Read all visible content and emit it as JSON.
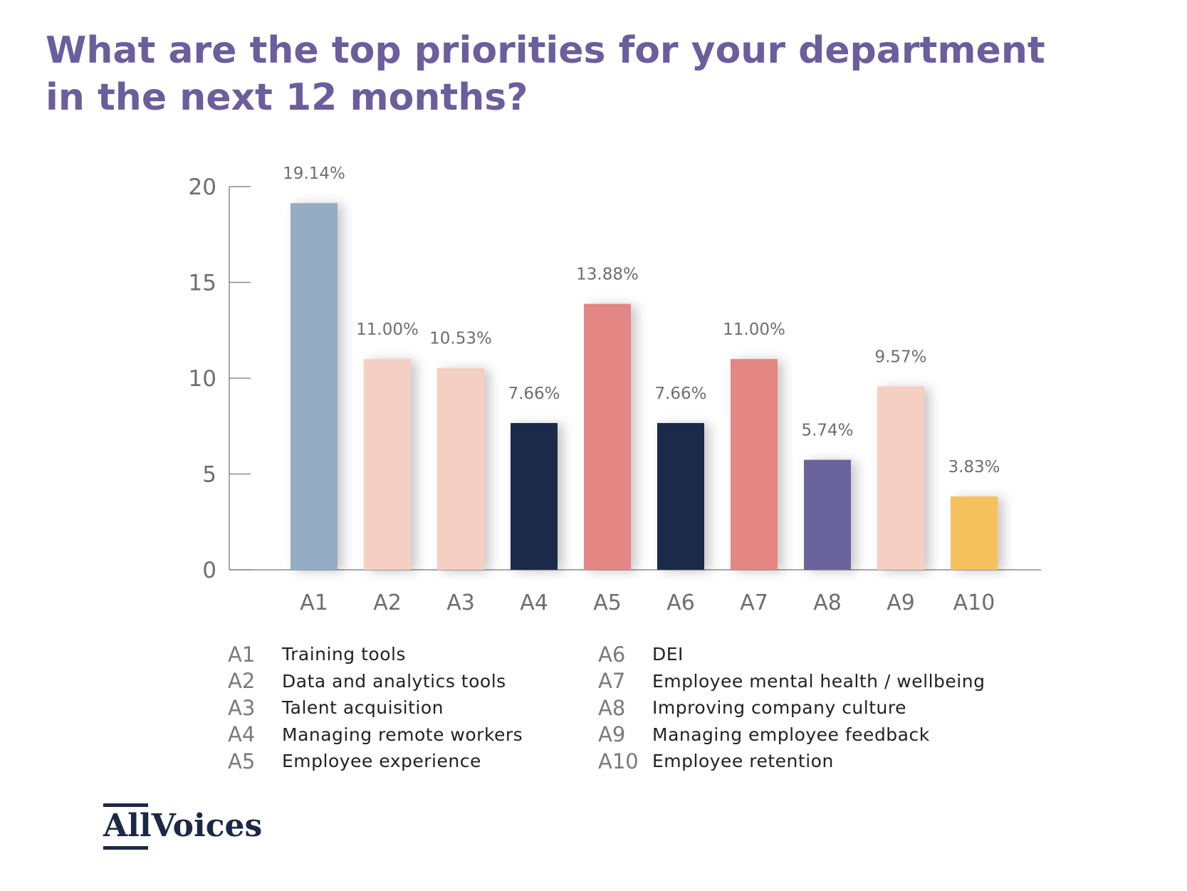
{
  "title_lines": [
    "What are the top priorities for your department",
    "in the next 12 months?"
  ],
  "chart_data": {
    "type": "bar",
    "title": "What are the top priorities for your department in the next 12 months?",
    "categories": [
      "A1",
      "A2",
      "A3",
      "A4",
      "A5",
      "A6",
      "A7",
      "A8",
      "A9",
      "A10"
    ],
    "values": [
      19.14,
      11.0,
      10.53,
      7.66,
      13.88,
      7.66,
      11.0,
      5.74,
      9.57,
      3.83
    ],
    "value_labels": [
      "19.14%",
      "11.00%",
      "10.53%",
      "7.66%",
      "13.88%",
      "7.66%",
      "11.00%",
      "5.74%",
      "9.57%",
      "3.83%"
    ],
    "bar_colors": [
      "#94adc4",
      "#f5cfc3",
      "#f5cfc3",
      "#1d2a48",
      "#e48683",
      "#1d2a48",
      "#e48683",
      "#6a649c",
      "#f5cfc3",
      "#f6c25d"
    ],
    "ylim": [
      0,
      20
    ],
    "yticks": [
      "0",
      "5",
      "10",
      "15",
      "20"
    ],
    "xlabel": "",
    "ylabel": "",
    "grid": false,
    "legend_position": "bottom"
  },
  "legend": [
    [
      {
        "code": "A1",
        "label": "Training tools"
      },
      {
        "code": "A2",
        "label": "Data and analytics tools"
      },
      {
        "code": "A3",
        "label": "Talent acquisition"
      },
      {
        "code": "A4",
        "label": "Managing remote workers"
      },
      {
        "code": "A5",
        "label": "Employee experience"
      }
    ],
    [
      {
        "code": "A6",
        "label": "DEI"
      },
      {
        "code": "A7",
        "label": "Employee mental health / wellbeing"
      },
      {
        "code": "A8",
        "label": "Improving company culture"
      },
      {
        "code": "A9",
        "label": "Managing employee feedback"
      },
      {
        "code": "A10",
        "label": "Employee retention"
      }
    ]
  ],
  "logo": {
    "text": "AllVoices",
    "color": "#1c2945"
  }
}
